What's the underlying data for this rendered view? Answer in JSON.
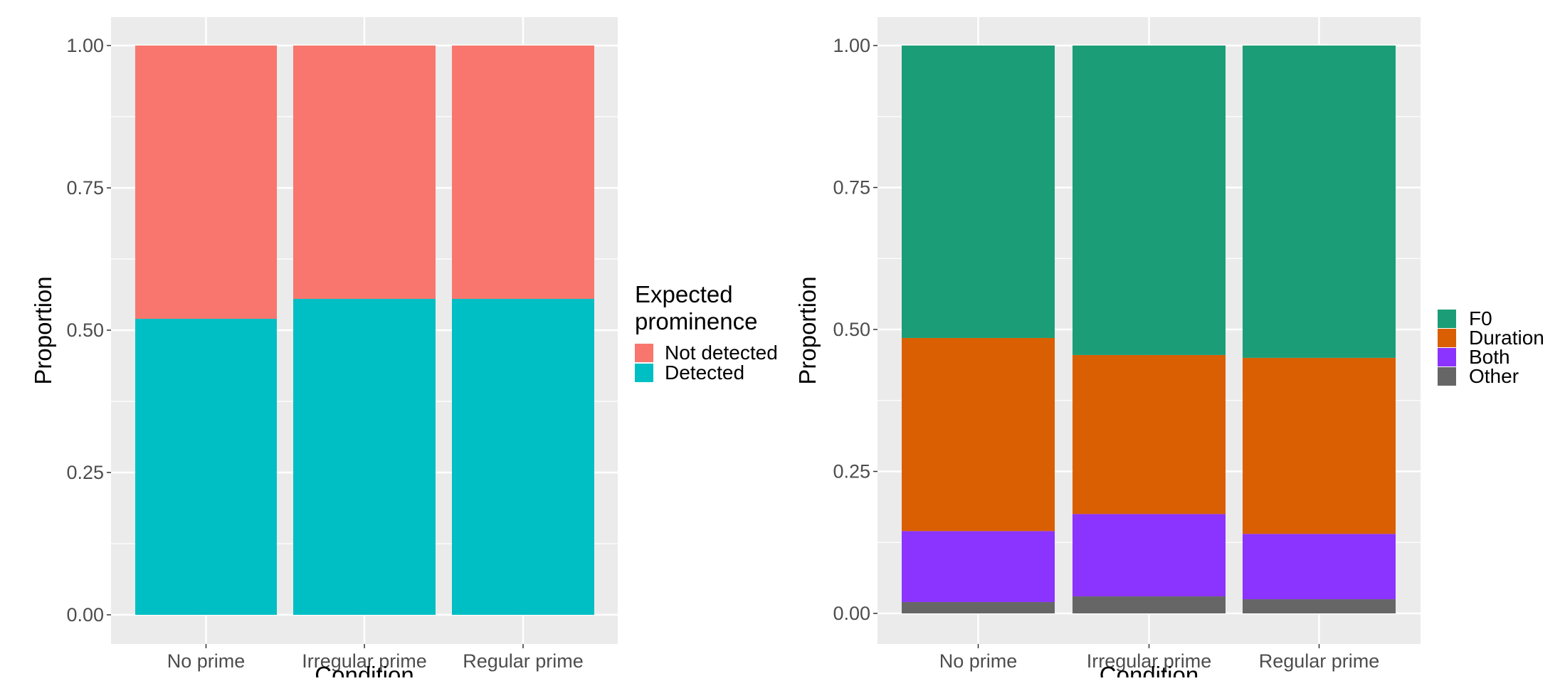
{
  "figure": {
    "background_color": "#ffffff",
    "panel_color": "#ebebeb",
    "grid_color": "#ffffff"
  },
  "chart_data": [
    {
      "type": "bar",
      "stacked": true,
      "xlabel": "Condition",
      "ylabel": "Proportion",
      "ylim": [
        0,
        1
      ],
      "yticks": [
        "0.00",
        "0.25",
        "0.50",
        "0.75",
        "1.00"
      ],
      "categories": [
        "No prime",
        "Irregular prime",
        "Regular prime"
      ],
      "grid": true,
      "legend": {
        "title": "Expected prominence",
        "title_lines": [
          "Expected",
          "prominence"
        ],
        "placement": "right",
        "entries": [
          "Not detected",
          "Detected"
        ]
      },
      "series": [
        {
          "name": "Detected",
          "color": "#00bfc4",
          "values": [
            0.52,
            0.555,
            0.555
          ]
        },
        {
          "name": "Not detected",
          "color": "#f8766d",
          "values": [
            0.48,
            0.445,
            0.445
          ]
        }
      ]
    },
    {
      "type": "bar",
      "stacked": true,
      "xlabel": "Condition",
      "ylabel": "Proportion",
      "ylim": [
        0,
        1
      ],
      "yticks": [
        "0.00",
        "0.25",
        "0.50",
        "0.75",
        "1.00"
      ],
      "categories": [
        "No prime",
        "Irregular prime",
        "Regular prime"
      ],
      "grid": true,
      "legend": {
        "title": "",
        "placement": "right",
        "entries": [
          "F0",
          "Duration",
          "Both",
          "Other"
        ]
      },
      "series": [
        {
          "name": "Other",
          "color": "#666666",
          "values": [
            0.02,
            0.03,
            0.025
          ]
        },
        {
          "name": "Both",
          "color": "#8b33ff",
          "values": [
            0.125,
            0.145,
            0.115
          ]
        },
        {
          "name": "Duration",
          "color": "#d95f02",
          "values": [
            0.34,
            0.28,
            0.31
          ]
        },
        {
          "name": "F0",
          "color": "#1b9e77",
          "values": [
            0.515,
            0.545,
            0.55
          ]
        }
      ]
    }
  ]
}
